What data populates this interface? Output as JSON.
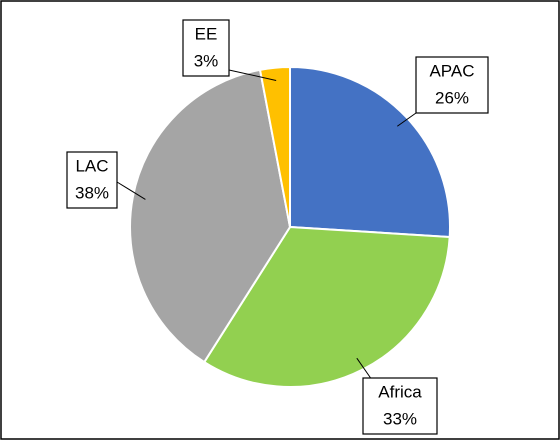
{
  "chart_data": {
    "type": "pie",
    "categories": [
      "APAC",
      "Africa",
      "LAC",
      "EE"
    ],
    "values": [
      26,
      33,
      38,
      3
    ],
    "value_labels": [
      "26%",
      "33%",
      "38%",
      "3%"
    ],
    "colors": [
      "#4472c4",
      "#92d050",
      "#a5a5a5",
      "#ffc000"
    ]
  }
}
